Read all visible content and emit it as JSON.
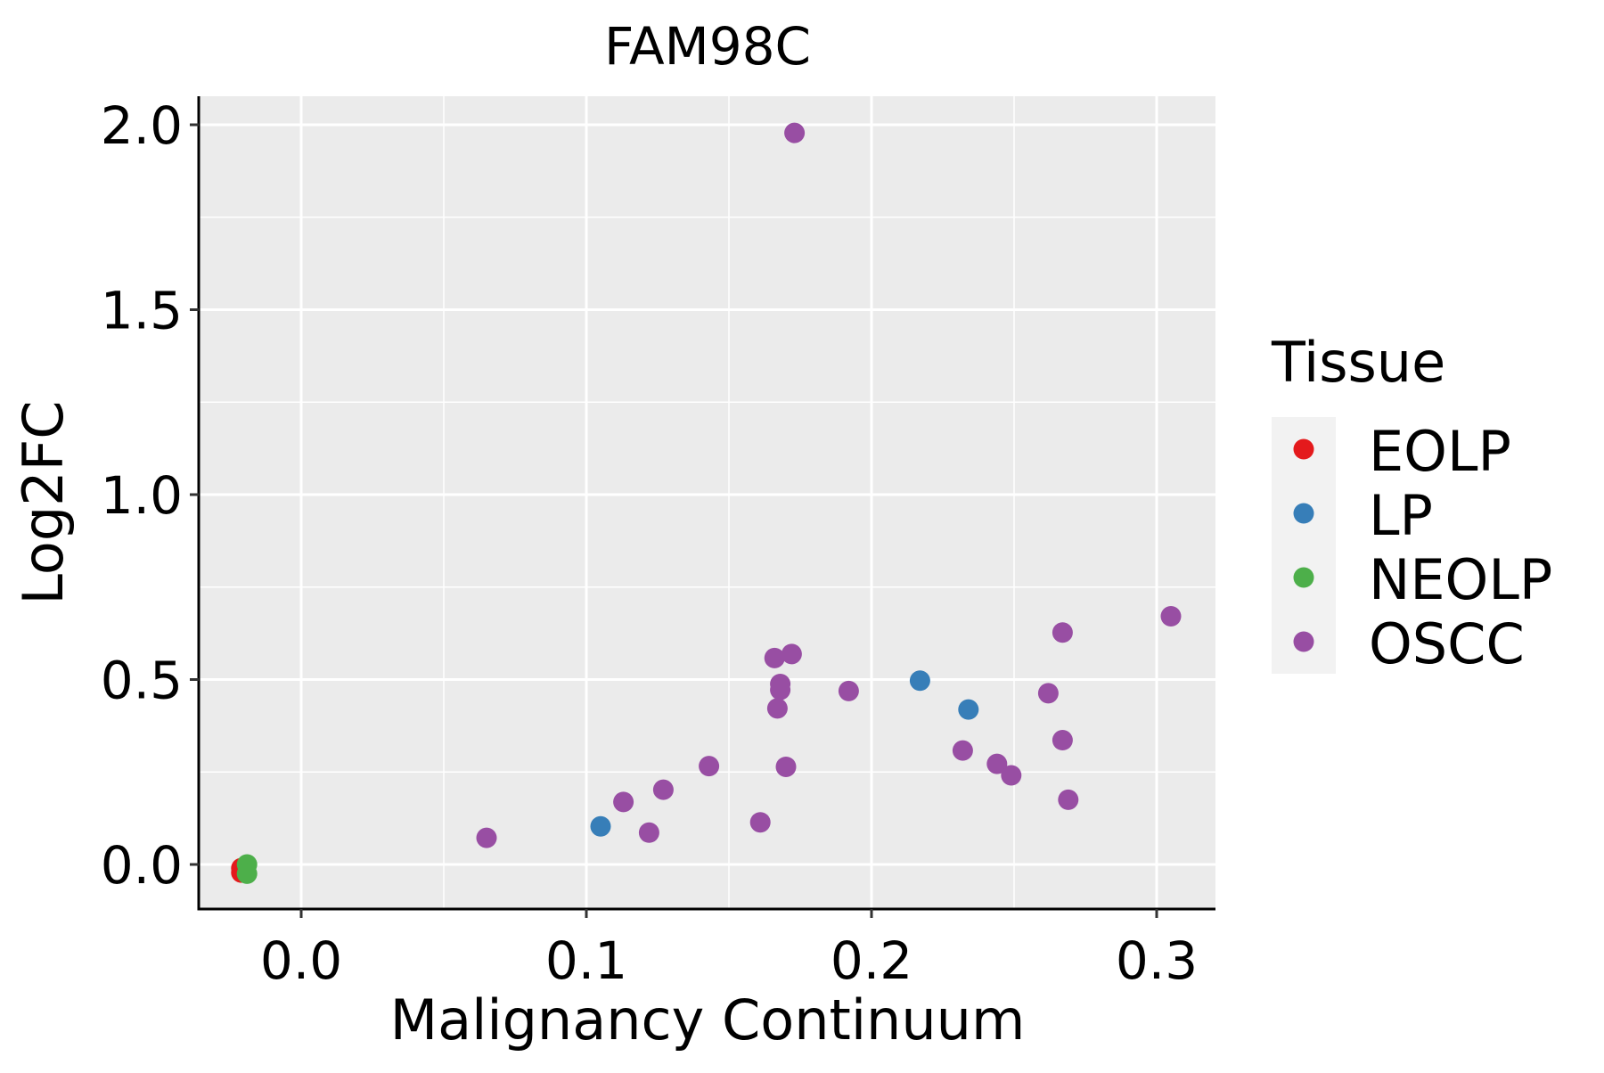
{
  "chart_data": {
    "type": "scatter",
    "title": "FAM98C",
    "xlabel": "Malignancy Continuum",
    "ylabel": "Log2FC",
    "xlim": [
      -0.036,
      0.322
    ],
    "ylim": [
      -0.12,
      2.08
    ],
    "xticks": [
      0.0,
      0.1,
      0.2,
      0.3
    ],
    "xtick_labels": [
      "0.0",
      "0.1",
      "0.2",
      "0.3"
    ],
    "yticks": [
      0.0,
      0.5,
      1.0,
      1.5,
      2.0
    ],
    "ytick_labels": [
      "0.0",
      "0.5",
      "1.0",
      "1.5",
      "2.0"
    ],
    "grid": true,
    "legend": {
      "title": "Tissue",
      "position": "right"
    },
    "series": [
      {
        "name": "EOLP",
        "color": "#E41A1C",
        "points": [
          [
            -0.021,
            -0.01
          ],
          [
            -0.021,
            -0.022
          ]
        ]
      },
      {
        "name": "LP",
        "color": "#377EB8",
        "points": [
          [
            0.105,
            0.103
          ],
          [
            0.217,
            0.497
          ],
          [
            0.234,
            0.419
          ]
        ]
      },
      {
        "name": "NEOLP",
        "color": "#4DAF4A",
        "points": [
          [
            -0.019,
            0.0
          ],
          [
            -0.019,
            -0.025
          ]
        ]
      },
      {
        "name": "OSCC",
        "color": "#984EA3",
        "points": [
          [
            0.173,
            1.978
          ],
          [
            0.065,
            0.072
          ],
          [
            0.113,
            0.169
          ],
          [
            0.122,
            0.086
          ],
          [
            0.127,
            0.202
          ],
          [
            0.143,
            0.266
          ],
          [
            0.161,
            0.114
          ],
          [
            0.17,
            0.264
          ],
          [
            0.166,
            0.558
          ],
          [
            0.172,
            0.569
          ],
          [
            0.168,
            0.488
          ],
          [
            0.168,
            0.472
          ],
          [
            0.167,
            0.422
          ],
          [
            0.192,
            0.469
          ],
          [
            0.232,
            0.308
          ],
          [
            0.244,
            0.272
          ],
          [
            0.249,
            0.241
          ],
          [
            0.262,
            0.463
          ],
          [
            0.267,
            0.627
          ],
          [
            0.267,
            0.336
          ],
          [
            0.269,
            0.175
          ],
          [
            0.305,
            0.671
          ]
        ]
      }
    ]
  }
}
